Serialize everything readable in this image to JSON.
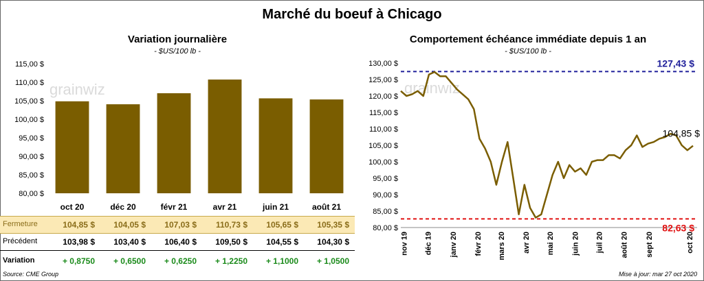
{
  "title": "Marché du boeuf à Chicago",
  "watermark": "grainwiz",
  "colors": {
    "bar": "#7a5d00",
    "line": "#7a5d00",
    "high": "#1f1f9a",
    "low": "#e01010",
    "fermeture_bg": "#fbe9b5",
    "green": "#1a8a1a"
  },
  "chart_data": [
    {
      "type": "bar",
      "title": "Variation  journalière",
      "subtitle": "- $US/100 lb -",
      "ylim": [
        80,
        115
      ],
      "ytick_values": [
        80,
        85,
        90,
        95,
        100,
        105,
        110,
        115
      ],
      "ytick_labels": [
        "80,00 $",
        "85,00 $",
        "90,00 $",
        "95,00 $",
        "100,00 $",
        "105,00 $",
        "110,00 $",
        "115,00 $"
      ],
      "categories": [
        "oct 20",
        "déc 20",
        "févr 21",
        "avr 21",
        "juin 21",
        "août 21"
      ],
      "values": [
        104.85,
        104.05,
        107.03,
        110.73,
        105.65,
        105.35
      ]
    },
    {
      "type": "line",
      "title": "Comportement  échéance immédiate depuis 1 an",
      "subtitle": "- $US/100 lb -",
      "ylim": [
        80,
        130
      ],
      "ytick_values": [
        80,
        85,
        90,
        95,
        100,
        105,
        110,
        115,
        120,
        125,
        130
      ],
      "ytick_labels": [
        "80,00 $",
        "85,00 $",
        "90,00 $",
        "95,00 $",
        "100,00 $",
        "105,00 $",
        "110,00 $",
        "115,00 $",
        "120,00 $",
        "125,00 $",
        "130,00 $"
      ],
      "xtick_labels": [
        "nov 19",
        "déc 19",
        "janv 20",
        "févr 20",
        "mars 20",
        "avr 20",
        "mai 20",
        "juin 20",
        "juil 20",
        "août 20",
        "sept 20",
        "oct 20"
      ],
      "x": [
        "2019-10-28",
        "2019-11-04",
        "2019-11-11",
        "2019-11-18",
        "2019-11-25",
        "2019-12-02",
        "2019-12-09",
        "2019-12-16",
        "2019-12-23",
        "2019-12-30",
        "2020-01-06",
        "2020-01-13",
        "2020-01-20",
        "2020-01-27",
        "2020-02-03",
        "2020-02-10",
        "2020-02-17",
        "2020-02-24",
        "2020-03-02",
        "2020-03-09",
        "2020-03-16",
        "2020-03-23",
        "2020-03-30",
        "2020-04-06",
        "2020-04-13",
        "2020-04-20",
        "2020-04-27",
        "2020-05-04",
        "2020-05-11",
        "2020-05-18",
        "2020-05-25",
        "2020-06-01",
        "2020-06-08",
        "2020-06-15",
        "2020-06-22",
        "2020-06-29",
        "2020-07-06",
        "2020-07-13",
        "2020-07-20",
        "2020-07-27",
        "2020-08-03",
        "2020-08-10",
        "2020-08-17",
        "2020-08-24",
        "2020-08-31",
        "2020-09-07",
        "2020-09-14",
        "2020-09-21",
        "2020-09-28",
        "2020-10-05",
        "2020-10-12",
        "2020-10-19",
        "2020-10-26"
      ],
      "values": [
        121.5,
        120.0,
        120.5,
        121.5,
        120.0,
        126.5,
        127.3,
        126.0,
        126.0,
        124.0,
        122.0,
        120.5,
        119.0,
        116.0,
        107.0,
        104.0,
        100.0,
        93.0,
        100.0,
        106.0,
        95.0,
        84.0,
        93.0,
        86.0,
        83.0,
        84.0,
        90.0,
        96.0,
        100.0,
        95.0,
        99.0,
        97.0,
        98.0,
        96.0,
        100.0,
        100.5,
        100.5,
        102.0,
        102.0,
        101.0,
        103.5,
        105.0,
        108.0,
        104.5,
        105.5,
        106.0,
        107.0,
        107.5,
        108.5,
        108.0,
        105.0,
        103.5,
        104.85
      ],
      "high_line": {
        "value": 127.43,
        "label": "127,43 $"
      },
      "low_line": {
        "value": 82.63,
        "label": "82,63 $"
      },
      "last_label": "104,85 $"
    }
  ],
  "table": {
    "rows": [
      {
        "label": "Fermeture",
        "values": [
          "104,85  $",
          "104,05  $",
          "107,03  $",
          "110,73  $",
          "105,65  $",
          "105,35  $"
        ]
      },
      {
        "label": "Précédent",
        "values": [
          "103,98  $",
          "103,40  $",
          "106,40  $",
          "109,50  $",
          "104,55  $",
          "104,30  $"
        ]
      },
      {
        "label": "Variation",
        "values": [
          "+ 0,8750",
          "+ 0,6500",
          "+ 0,6250",
          "+ 1,2250",
          "+ 1,1000",
          "+ 1,0500"
        ]
      }
    ]
  },
  "footer": {
    "source": "Source: CME Group",
    "updated": "Mise à jour: mar 27 oct 2020"
  }
}
